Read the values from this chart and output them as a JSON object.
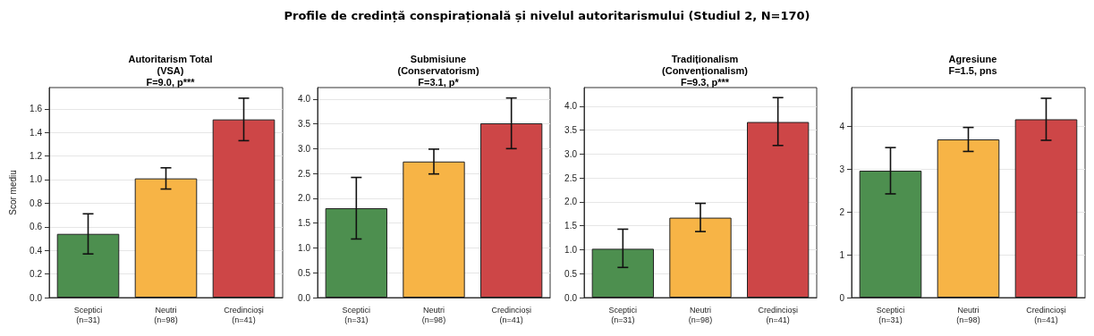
{
  "chart_data": [
    {
      "type": "other",
      "title": "Profile de credință conspirațională și nivelul autoritarismului (Studiul 2, N=170)"
    },
    {
      "type": "bar",
      "title": "Autoritarism Total\n(VSA)\nF=9.0, p***",
      "ylabel": "Scor mediu",
      "categories": [
        "Sceptici\n(n=31)",
        "Neutri\n(n=98)",
        "Credincioși\n(n=41)"
      ],
      "values": [
        0.54,
        1.01,
        1.51
      ],
      "colors": [
        "#4d8f4f",
        "#f7b446",
        "#cd4647"
      ],
      "errors": [
        [
          0.37,
          0.71
        ],
        [
          0.92,
          1.1
        ],
        [
          1.33,
          1.69
        ]
      ],
      "ylim": [
        0,
        1.78
      ],
      "yticks": [
        {
          "value": 0,
          "label": "0.0"
        },
        0.2,
        0.4,
        0.6,
        0.8,
        {
          "value": 1,
          "label": "1.0"
        },
        1.2,
        1.4,
        1.6
      ],
      "grid": "y"
    },
    {
      "type": "bar",
      "title": "Submisiune\n(Conservatorism)\nF=3.1, p*",
      "categories": [
        "Sceptici\n(n=31)",
        "Neutri\n(n=98)",
        "Credincioși\n(n=41)"
      ],
      "values": [
        1.8,
        2.74,
        3.51
      ],
      "colors": [
        "#4d8f4f",
        "#f7b446",
        "#cd4647"
      ],
      "errors": [
        [
          1.18,
          2.42
        ],
        [
          2.49,
          2.99
        ],
        [
          3.0,
          4.02
        ]
      ],
      "ylim": [
        0,
        4.23
      ],
      "yticks": [
        {
          "value": 0,
          "label": "0.0"
        },
        0.5,
        {
          "value": 1,
          "label": "1.0"
        },
        1.5,
        {
          "value": 2,
          "label": "2.0"
        },
        2.5,
        {
          "value": 3,
          "label": "3.0"
        },
        3.5,
        {
          "value": 4,
          "label": "4.0"
        }
      ],
      "grid": "y"
    },
    {
      "type": "bar",
      "title": "Tradiționalism\n(Convenționalism)\nF=9.3, p***",
      "categories": [
        "Sceptici\n(n=31)",
        "Neutri\n(n=98)",
        "Credincioși\n(n=41)"
      ],
      "values": [
        1.02,
        1.67,
        3.67
      ],
      "colors": [
        "#4d8f4f",
        "#f7b446",
        "#cd4647"
      ],
      "errors": [
        [
          0.63,
          1.43
        ],
        [
          1.38,
          1.97
        ],
        [
          3.18,
          4.18
        ]
      ],
      "ylim": [
        0,
        4.39
      ],
      "yticks": [
        {
          "value": 0,
          "label": "0.0"
        },
        0.5,
        {
          "value": 1,
          "label": "1.0"
        },
        1.5,
        {
          "value": 2,
          "label": "2.0"
        },
        2.5,
        {
          "value": 3,
          "label": "3.0"
        },
        3.5,
        {
          "value": 4,
          "label": "4.0"
        }
      ],
      "grid": "y"
    },
    {
      "type": "bar",
      "title": "Agresiune\nF=1.5, pns",
      "categories": [
        "Sceptici\n(n=31)",
        "Neutri\n(n=98)",
        "Credincioși\n(n=41)"
      ],
      "values": [
        2.96,
        3.69,
        4.16
      ],
      "colors": [
        "#4d8f4f",
        "#f7b446",
        "#cd4647"
      ],
      "errors": [
        [
          2.42,
          3.5
        ],
        [
          3.41,
          3.97
        ],
        [
          3.67,
          4.65
        ]
      ],
      "ylim": [
        0,
        4.9
      ],
      "yticks": [
        0,
        1,
        2,
        3,
        4
      ],
      "grid": "y"
    }
  ]
}
